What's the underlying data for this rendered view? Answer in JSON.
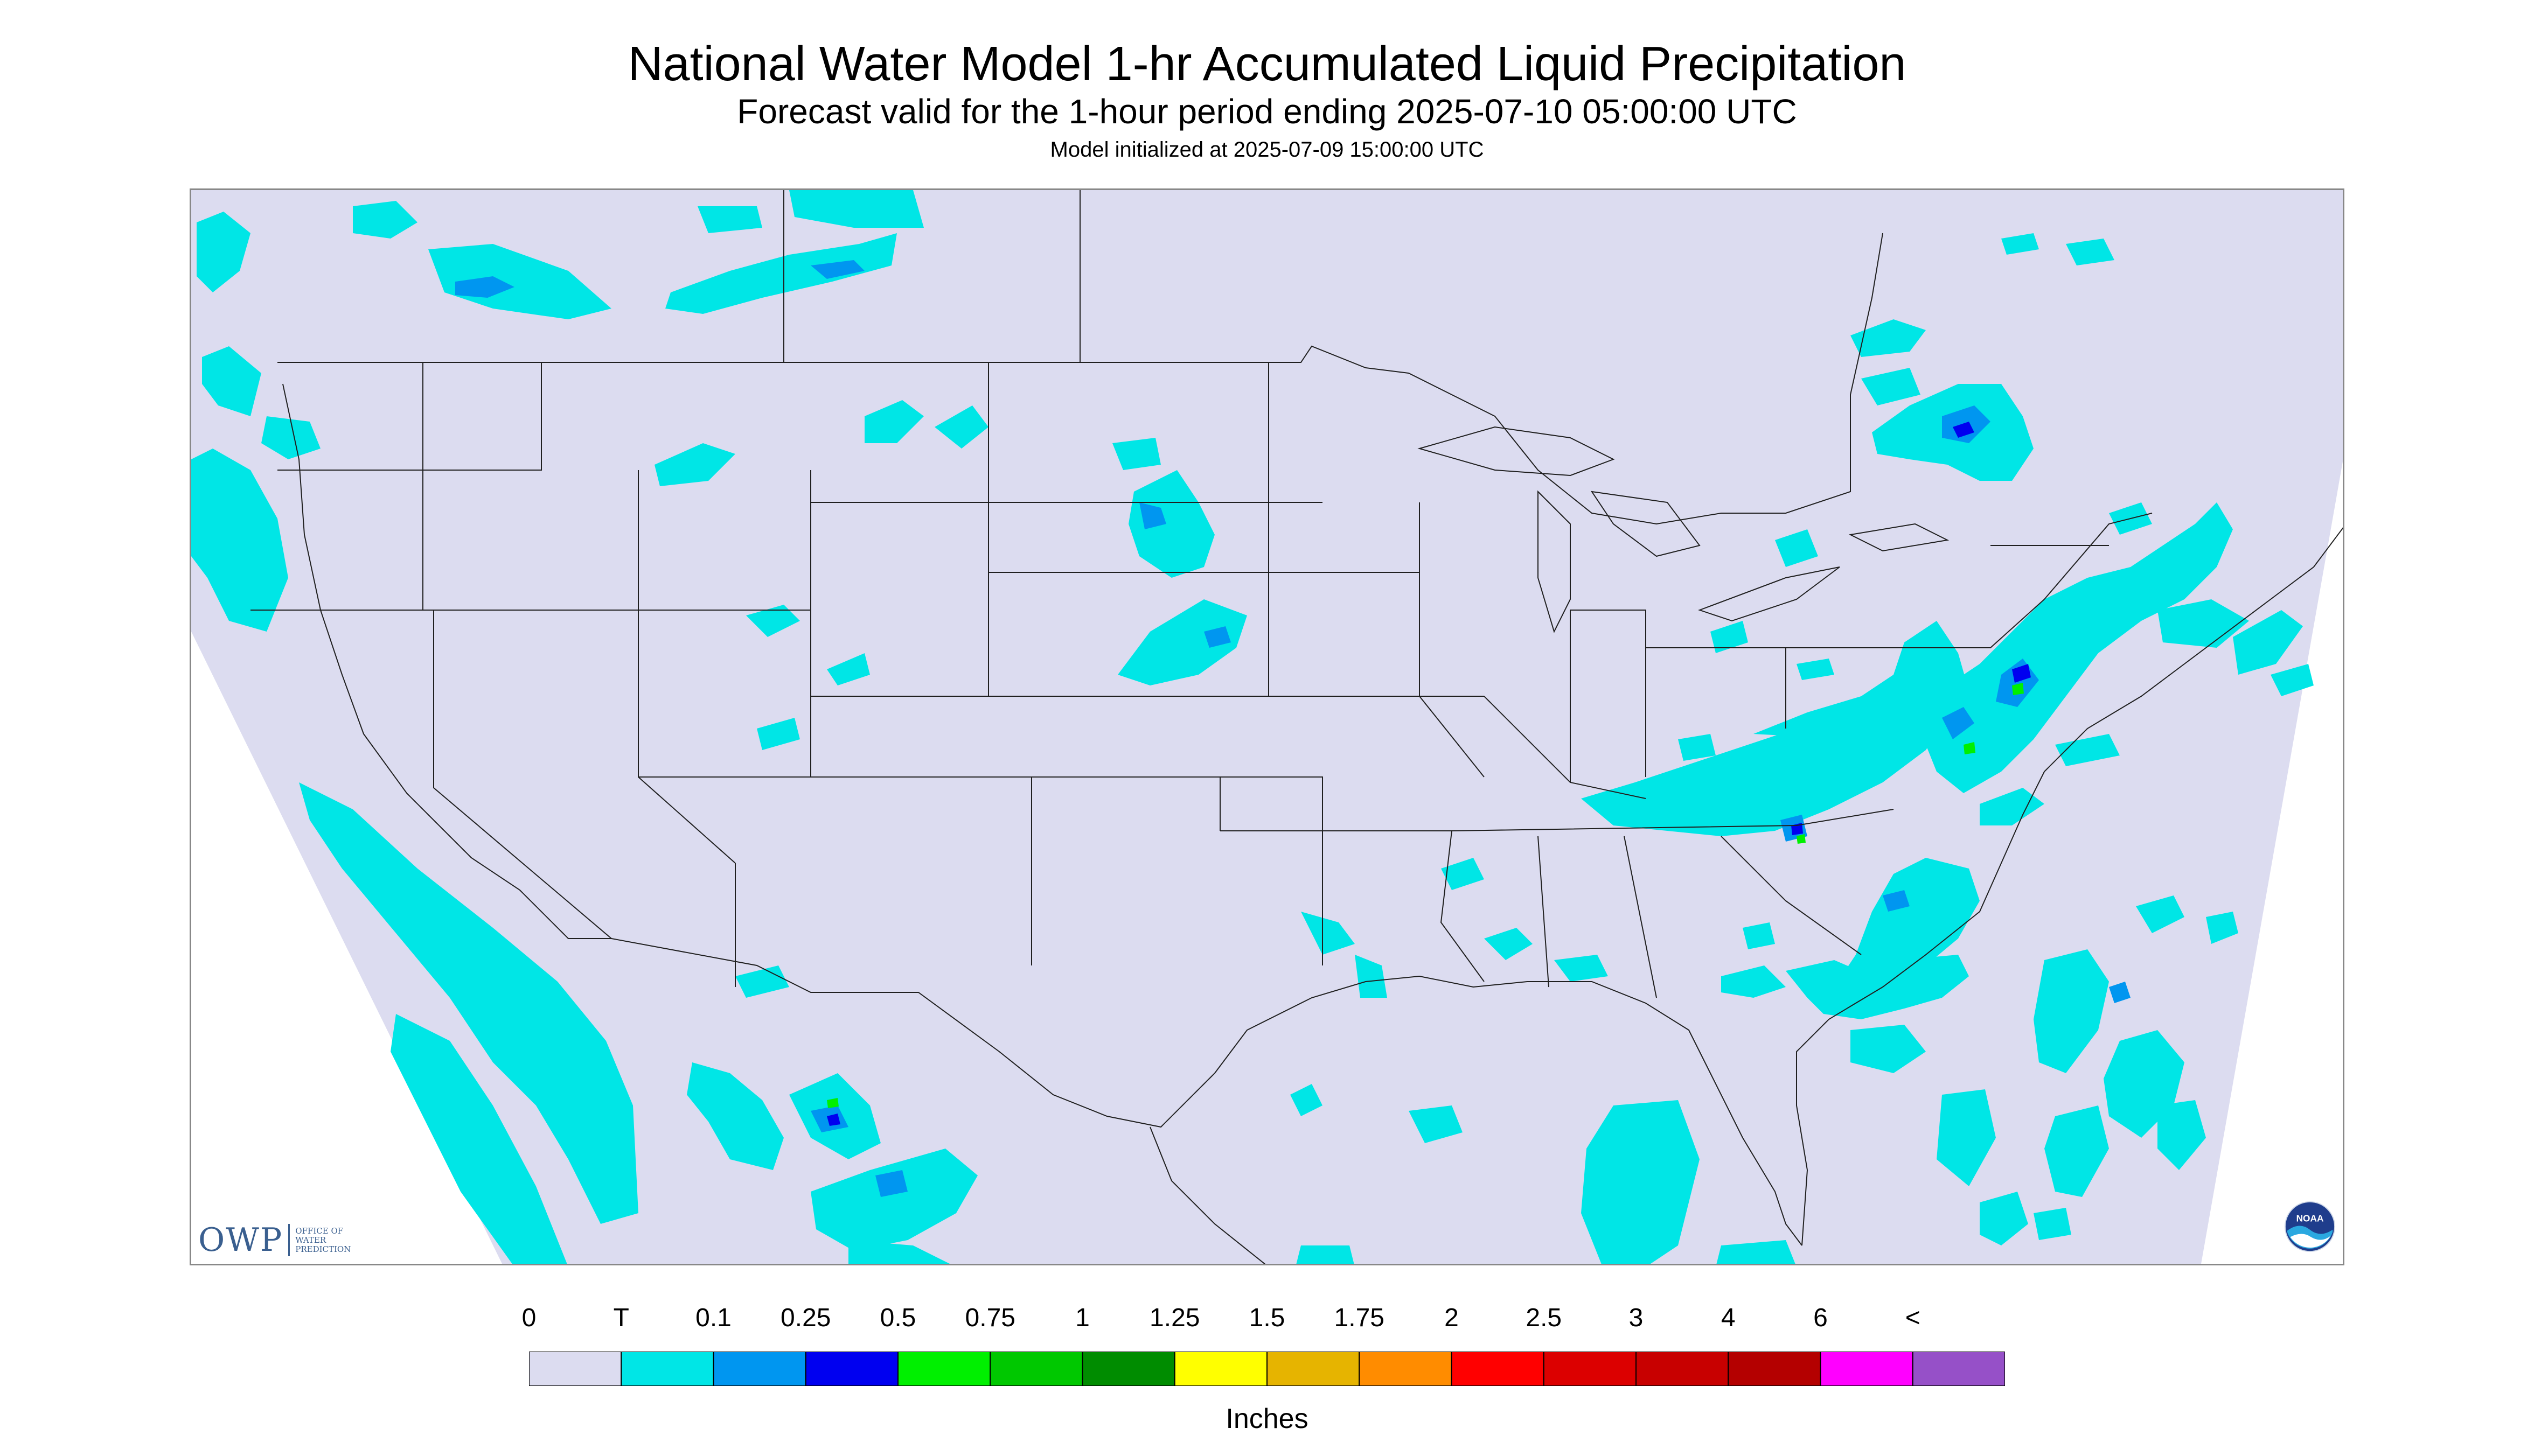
{
  "header": {
    "title": "National Water Model 1-hr Accumulated Liquid Precipitation",
    "subtitle": "Forecast valid for the 1-hour period ending 2025-07-10 05:00:00 UTC",
    "init_line": "Model initialized at 2025-07-09 15:00:00 UTC"
  },
  "legend": {
    "tick_labels": [
      "0",
      "T",
      "0.1",
      "0.25",
      "0.5",
      "0.75",
      "1",
      "1.25",
      "1.5",
      "1.75",
      "2",
      "2.5",
      "3",
      "4",
      "6",
      "<"
    ],
    "colors": [
      "#dcdcf0",
      "#00e6e6",
      "#0096f0",
      "#0000f0",
      "#00f000",
      "#00c800",
      "#008c00",
      "#ffff00",
      "#e6b400",
      "#ff8c00",
      "#ff0000",
      "#dc0000",
      "#c80000",
      "#b40000",
      "#ff00ff",
      "#9650c8"
    ],
    "units": "Inches"
  },
  "logos": {
    "owp_text": "OWP",
    "owp_subtext": "OFFICE OF WATER PREDICTION",
    "noaa_text": "NOAA"
  },
  "map": {
    "background_color": "#dcdcf0",
    "trace_color": "#00e6e6",
    "light_color": "#0096f0",
    "moderate_color": "#0000f0",
    "heavy_color": "#00f000"
  }
}
